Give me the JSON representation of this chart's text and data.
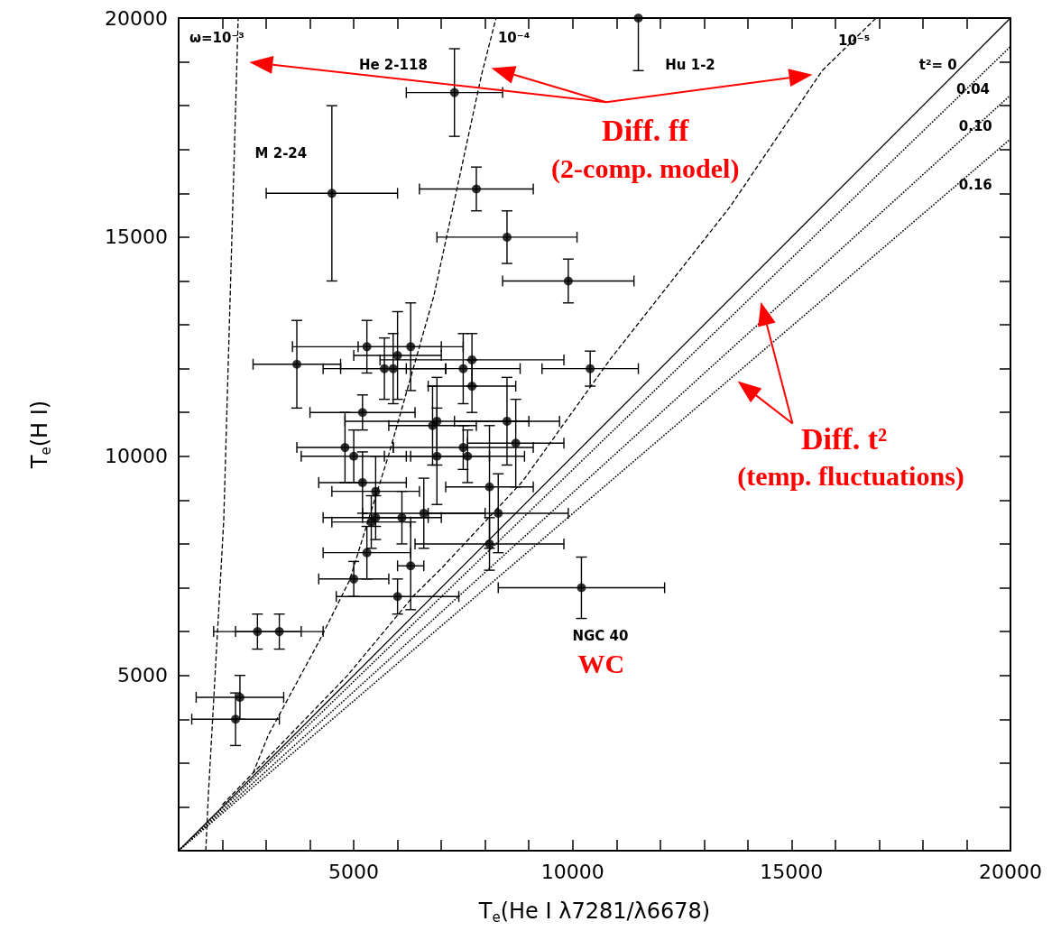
{
  "chart_data": {
    "type": "scatter",
    "xlabel": "T$_{e}$(He I λ7281/λ6678)",
    "ylabel": "T$_{e}$(H I)",
    "xlim": [
      1000,
      20000
    ],
    "ylim": [
      1000,
      20000
    ],
    "xticks": [
      {
        "value": 2000,
        "label": null
      },
      {
        "value": 3000,
        "label": null
      },
      {
        "value": 4000,
        "label": null
      },
      5000,
      {
        "value": 6000,
        "label": null
      },
      {
        "value": 7000,
        "label": null
      },
      {
        "value": 8000,
        "label": null
      },
      {
        "value": 9000,
        "label": null
      },
      10000,
      {
        "value": 11000,
        "label": null
      },
      {
        "value": 12000,
        "label": null
      },
      {
        "value": 13000,
        "label": null
      },
      {
        "value": 14000,
        "label": null
      },
      15000,
      {
        "value": 16000,
        "label": null
      },
      {
        "value": 17000,
        "label": null
      },
      {
        "value": 18000,
        "label": null
      },
      {
        "value": 19000,
        "label": null
      },
      20000
    ],
    "yticks": [
      {
        "value": 2000,
        "label": null
      },
      {
        "value": 3000,
        "label": null
      },
      {
        "value": 4000,
        "label": null
      },
      5000,
      {
        "value": 6000,
        "label": null
      },
      {
        "value": 7000,
        "label": null
      },
      {
        "value": 8000,
        "label": null
      },
      {
        "value": 9000,
        "label": null
      },
      10000,
      {
        "value": 11000,
        "label": null
      },
      {
        "value": 12000,
        "label": null
      },
      {
        "value": 13000,
        "label": null
      },
      {
        "value": 14000,
        "label": null
      },
      15000,
      {
        "value": 16000,
        "label": null
      },
      {
        "value": 17000,
        "label": null
      },
      {
        "value": 18000,
        "label": null
      },
      {
        "value": 19000,
        "label": null
      },
      20000
    ],
    "marker": "circle",
    "series": [
      {
        "type": "line",
        "color": "#000000",
        "line_style": "solid",
        "marker": "none",
        "x": [
          1000,
          20000
        ],
        "values": [
          1000,
          20000
        ]
      },
      {
        "type": "line",
        "color": "#000000",
        "line_style": "dotted",
        "marker": "none",
        "x": [
          1000,
          20000
        ],
        "values": [
          1000,
          19350
        ]
      },
      {
        "type": "line",
        "color": "#000000",
        "line_style": "dotted",
        "marker": "none",
        "x": [
          1000,
          20000
        ],
        "values": [
          1000,
          18240
        ]
      },
      {
        "type": "line",
        "color": "#000000",
        "line_style": "dotted",
        "marker": "none",
        "x": [
          1000,
          20000
        ],
        "values": [
          1000,
          17240
        ]
      },
      {
        "type": "line",
        "color": "#000000",
        "line_style": "dashed",
        "marker": "none",
        "x": [
          1620,
          1680,
          2030,
          2360
        ],
        "values": [
          1000,
          2290,
          8530,
          20000
        ]
      },
      {
        "type": "line",
        "color": "#000000",
        "line_style": "dashed",
        "marker": "none",
        "x": [
          2700,
          3050,
          4220,
          4900,
          5800,
          6830,
          7920,
          8250
        ],
        "values": [
          2770,
          3640,
          5800,
          7160,
          10040,
          13660,
          18710,
          20000
        ]
      },
      {
        "type": "line",
        "color": "#000000",
        "line_style": "dashed",
        "marker": "none",
        "x": [
          2000,
          4840,
          6380,
          7000,
          8850,
          10870,
          13600,
          15700,
          16930
        ],
        "values": [
          2050,
          4980,
          6830,
          7440,
          9420,
          12230,
          15700,
          18800,
          20000
        ]
      },
      {
        "color": "#000000",
        "x": [
          4500,
          7300,
          7800,
          8500,
          9900,
          11500,
          3700,
          5300,
          6300,
          6000,
          5700,
          5900,
          7500,
          7700,
          7700,
          10400,
          5200,
          6900,
          6800,
          8500,
          8700,
          7500,
          7600,
          6900,
          4800,
          5000,
          5200,
          5500,
          8100,
          8300,
          6600,
          6100,
          5500,
          5400,
          5300,
          8100,
          6300,
          5000,
          6000,
          10200,
          2800,
          3300,
          2400,
          2300
        ],
        "values": [
          16000,
          18300,
          16100,
          15000,
          14000,
          20000,
          12100,
          12500,
          12500,
          12300,
          12000,
          12000,
          12000,
          12200,
          11600,
          12000,
          11000,
          10800,
          10700,
          10800,
          10300,
          10200,
          10000,
          10000,
          10200,
          10000,
          9400,
          9200,
          9300,
          8700,
          8700,
          8600,
          8600,
          8500,
          7800,
          8000,
          7500,
          7200,
          6800,
          7000,
          6000,
          6000,
          4500,
          4000
        ],
        "xerrors": [
          1500,
          1100,
          1300,
          1600,
          1500,
          null,
          1000,
          1700,
          1200,
          1000,
          1400,
          1200,
          1300,
          2100,
          1000,
          1100,
          1200,
          2100,
          1000,
          1200,
          1100,
          1600,
          1300,
          1200,
          1100,
          1200,
          1000,
          1000,
          1000,
          1600,
          1400,
          900,
          1200,
          900,
          1000,
          1700,
          300,
          800,
          1400,
          1900,
          1000,
          1000,
          1000,
          1000
        ],
        "errors": [
          2000,
          1000,
          500,
          600,
          500,
          [
            18800,
            20000
          ],
          1000,
          600,
          1000,
          1000,
          700,
          800,
          800,
          600,
          600,
          400,
          400,
          1000,
          900,
          1000,
          1000,
          500,
          600,
          1100,
          800,
          600,
          700,
          800,
          1400,
          900,
          800,
          600,
          500,
          600,
          600,
          600,
          1000,
          400,
          400,
          700,
          400,
          400,
          500,
          600
        ]
      }
    ],
    "annotations": [
      "ω=10⁻³",
      "10⁻⁴",
      "10⁻⁵",
      "He 2-118",
      "Hu 1-2",
      "M 2-24",
      "t²= 0",
      "0.04",
      "0.10",
      "0.16",
      "NGC 40",
      "Diff. ff",
      "(2-comp. model)",
      "Diff. t²",
      "(temp. fluctuations)",
      "WC"
    ]
  }
}
